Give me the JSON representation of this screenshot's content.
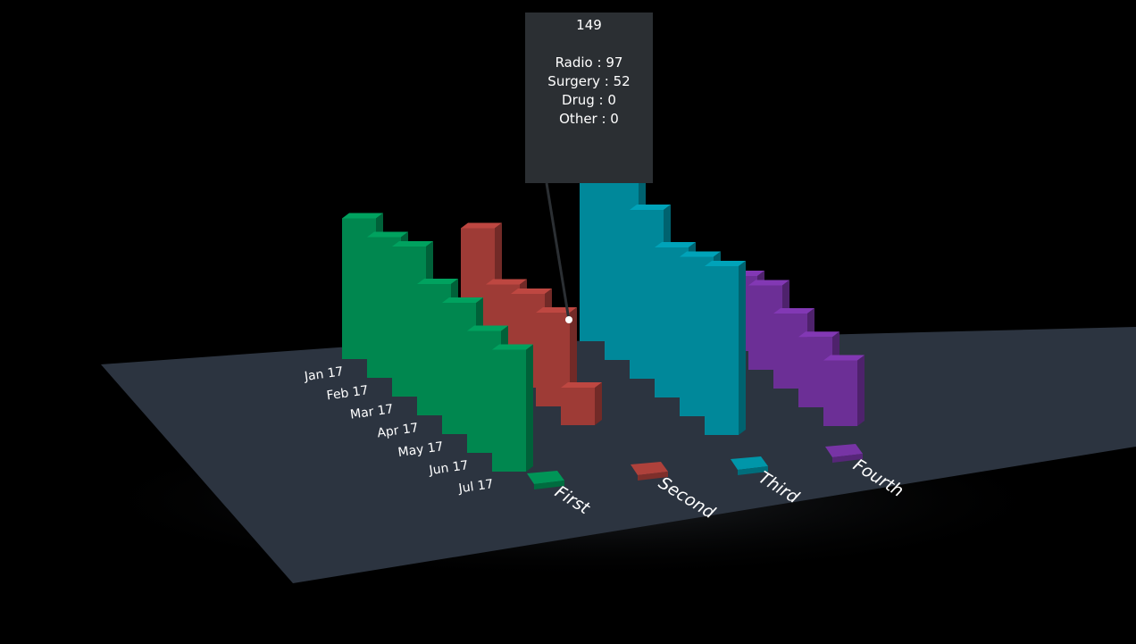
{
  "chart_data": {
    "type": "bar",
    "subtype": "3d-grouped-bar",
    "title": "",
    "xlabel": "",
    "ylabel": "",
    "categories": [
      "Jan 17",
      "Feb 17",
      "Mar 17",
      "Apr 17",
      "May 17",
      "Jun 17",
      "Jul 17"
    ],
    "series": [
      {
        "name": "First",
        "color": "#00874f",
        "values": [
          150,
          150,
          160,
          140,
          140,
          130,
          130
        ]
      },
      {
        "name": "Second",
        "color": "#9e3b36",
        "values": [
          130,
          90,
          100,
          100,
          40,
          0,
          0
        ]
      },
      {
        "name": "Third",
        "color": "#00889a",
        "values": [
          200,
          200,
          180,
          160,
          170,
          180,
          0
        ]
      },
      {
        "name": "Fourth",
        "color": "#6c2f96",
        "values": [
          60,
          80,
          90,
          80,
          75,
          70,
          0
        ]
      }
    ],
    "legend_placement": "bottom",
    "grid": false
  },
  "tooltip": {
    "total": "149",
    "lines": [
      "Radio : 97",
      "Surgery : 52",
      "Drug : 0",
      "Other : 0"
    ]
  }
}
